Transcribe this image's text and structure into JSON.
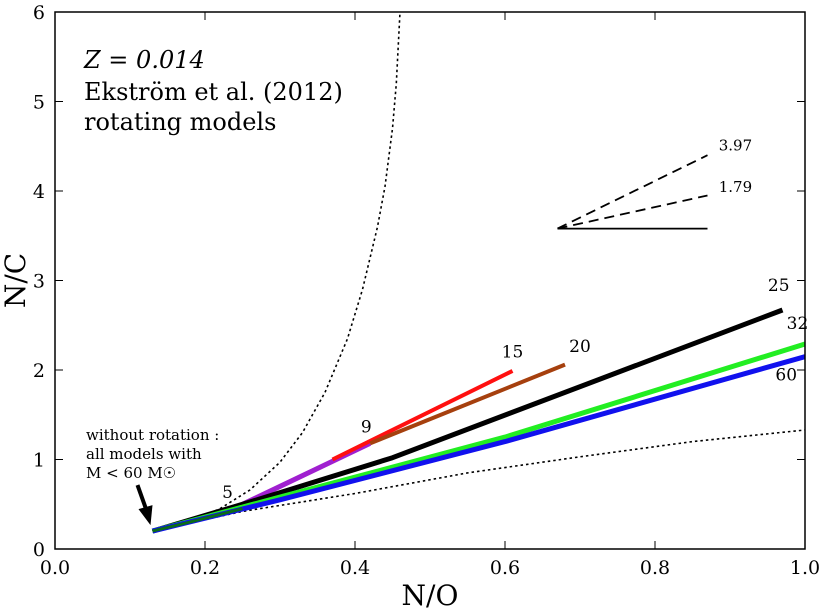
{
  "chart_data": {
    "type": "line",
    "xlabel": "N/O",
    "ylabel": "N/C",
    "xlim": [
      0.0,
      1.0
    ],
    "ylim": [
      0,
      6
    ],
    "x_ticks": [
      "0.0",
      "0.2",
      "0.4",
      "0.6",
      "0.8",
      "1.0"
    ],
    "y_ticks": [
      "0",
      "1",
      "2",
      "3",
      "4",
      "5",
      "6"
    ],
    "grid": false,
    "legend": "none",
    "info_text": [
      "Z = 0.014",
      "Ekström et al. (2012)",
      "rotating models"
    ],
    "annotation": [
      "without rotation :",
      "all models with",
      "M < 60 M☉"
    ],
    "series": [
      {
        "name": "5",
        "color": "#0b6b1a",
        "width": 3,
        "label_pos": [
          0.23,
          0.57
        ],
        "points": [
          [
            0.13,
            0.2
          ],
          [
            0.18,
            0.32
          ],
          [
            0.22,
            0.42
          ],
          [
            0.25,
            0.5
          ]
        ]
      },
      {
        "name": "9",
        "color": "#a020d0",
        "width": 5,
        "label_pos": [
          0.415,
          1.3
        ],
        "points": [
          [
            0.25,
            0.5
          ],
          [
            0.42,
            1.18
          ]
        ]
      },
      {
        "name": "15",
        "color": "#ff1010",
        "width": 4,
        "label_pos": [
          0.61,
          2.14
        ],
        "points": [
          [
            0.37,
            1.0
          ],
          [
            0.61,
            1.99
          ]
        ]
      },
      {
        "name": "20",
        "color": "#a6400e",
        "width": 4,
        "label_pos": [
          0.7,
          2.2
        ],
        "points": [
          [
            0.42,
            1.18
          ],
          [
            0.68,
            2.06
          ]
        ]
      },
      {
        "name": "25",
        "color": "#000000",
        "width": 5,
        "label_pos": [
          0.965,
          2.88
        ],
        "points": [
          [
            0.13,
            0.2
          ],
          [
            0.25,
            0.5
          ],
          [
            0.45,
            1.02
          ],
          [
            0.97,
            2.67
          ]
        ]
      },
      {
        "name": "32",
        "color": "#22ee22",
        "width": 5,
        "label_pos": [
          0.99,
          2.46
        ],
        "points": [
          [
            0.13,
            0.2
          ],
          [
            0.3,
            0.58
          ],
          [
            0.6,
            1.25
          ],
          [
            1.0,
            2.29
          ]
        ]
      },
      {
        "name": "60",
        "color": "#1111ee",
        "width": 5,
        "label_pos": [
          0.975,
          1.88
        ],
        "points": [
          [
            0.13,
            0.2
          ],
          [
            0.3,
            0.55
          ],
          [
            0.6,
            1.2
          ],
          [
            1.0,
            2.15
          ]
        ]
      },
      {
        "name": "",
        "color": "#0b6b1a",
        "width": 3,
        "points": [
          [
            0.13,
            0.2
          ],
          [
            0.18,
            0.3
          ],
          [
            0.25,
            0.45
          ]
        ]
      }
    ],
    "dotted_curves": [
      {
        "points": [
          [
            0.13,
            0.2
          ],
          [
            0.18,
            0.3
          ],
          [
            0.22,
            0.45
          ],
          [
            0.26,
            0.66
          ],
          [
            0.3,
            0.97
          ],
          [
            0.33,
            1.3
          ],
          [
            0.36,
            1.75
          ],
          [
            0.39,
            2.35
          ],
          [
            0.41,
            2.9
          ],
          [
            0.43,
            3.6
          ],
          [
            0.44,
            4.05
          ],
          [
            0.45,
            4.7
          ],
          [
            0.455,
            5.2
          ],
          [
            0.46,
            6.0
          ]
        ]
      },
      {
        "points": [
          [
            0.13,
            0.2
          ],
          [
            0.25,
            0.42
          ],
          [
            0.4,
            0.62
          ],
          [
            0.55,
            0.85
          ],
          [
            0.7,
            1.03
          ],
          [
            0.85,
            1.2
          ],
          [
            1.0,
            1.33
          ]
        ]
      }
    ],
    "slope_indicator": {
      "origin": [
        0.67,
        3.58
      ],
      "lines": [
        {
          "slope_label": "3.97",
          "end": [
            0.87,
            4.4
          ],
          "style": "dashed",
          "label_pos": [
            0.885,
            4.45
          ]
        },
        {
          "slope_label": "1.79",
          "end": [
            0.87,
            3.95
          ],
          "style": "dashed",
          "label_pos": [
            0.885,
            3.99
          ]
        },
        {
          "slope_label": "",
          "end": [
            0.87,
            3.58
          ],
          "style": "solid"
        }
      ]
    }
  }
}
